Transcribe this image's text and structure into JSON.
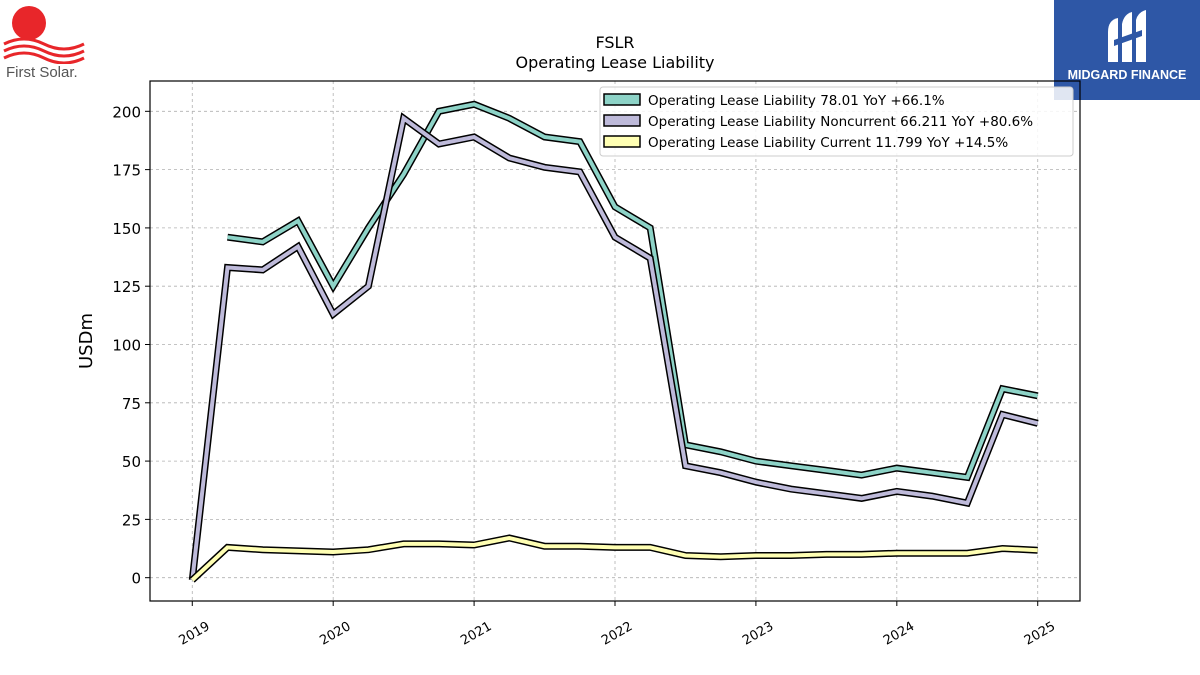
{
  "logos": {
    "left_text": "First Solar.",
    "right_text": "MIDGARD FINANCE"
  },
  "chart_data": {
    "type": "line",
    "title": "FSLR",
    "subtitle": "Operating Lease Liability",
    "xlabel": "",
    "ylabel": "USDm",
    "xlim": [
      2018.7,
      2025.3
    ],
    "ylim": [
      -10,
      213
    ],
    "yticks": [
      0,
      25,
      50,
      75,
      100,
      125,
      150,
      175,
      200
    ],
    "xticks": [
      "2019",
      "2020",
      "2021",
      "2022",
      "2023",
      "2024",
      "2025"
    ],
    "grid": true,
    "legend_position": "top-right",
    "series": [
      {
        "name": "Operating Lease Liability",
        "legend_label": "Operating Lease Liability  78.01 YoY +66.1%",
        "color": "#8dd3c7",
        "points": [
          [
            2019.25,
            146
          ],
          [
            2019.5,
            144
          ],
          [
            2019.75,
            153
          ],
          [
            2020.0,
            125
          ],
          [
            2020.25,
            150
          ],
          [
            2020.5,
            173
          ],
          [
            2020.75,
            200
          ],
          [
            2021.0,
            203
          ],
          [
            2021.25,
            197
          ],
          [
            2021.5,
            189
          ],
          [
            2021.75,
            187
          ],
          [
            2022.0,
            159
          ],
          [
            2022.25,
            150
          ],
          [
            2022.5,
            57
          ],
          [
            2022.75,
            54
          ],
          [
            2023.0,
            50
          ],
          [
            2023.25,
            48
          ],
          [
            2023.5,
            46
          ],
          [
            2023.75,
            44
          ],
          [
            2024.0,
            47
          ],
          [
            2024.25,
            45
          ],
          [
            2024.5,
            43
          ],
          [
            2024.75,
            81
          ],
          [
            2025.0,
            78.01
          ]
        ]
      },
      {
        "name": "Operating Lease Liability Noncurrent",
        "legend_label": "Operating Lease Liability Noncurrent  66.211 YoY +80.6%",
        "color": "#bebada",
        "points": [
          [
            2019.0,
            -1
          ],
          [
            2019.25,
            133
          ],
          [
            2019.5,
            132
          ],
          [
            2019.75,
            142
          ],
          [
            2020.0,
            113
          ],
          [
            2020.25,
            125
          ],
          [
            2020.5,
            197
          ],
          [
            2020.75,
            186
          ],
          [
            2021.0,
            189
          ],
          [
            2021.25,
            180
          ],
          [
            2021.5,
            176
          ],
          [
            2021.75,
            174
          ],
          [
            2022.0,
            146
          ],
          [
            2022.25,
            137
          ],
          [
            2022.5,
            48
          ],
          [
            2022.75,
            45
          ],
          [
            2023.0,
            41
          ],
          [
            2023.25,
            38
          ],
          [
            2023.5,
            36
          ],
          [
            2023.75,
            34
          ],
          [
            2024.0,
            37
          ],
          [
            2024.25,
            35
          ],
          [
            2024.5,
            32
          ],
          [
            2024.75,
            70
          ],
          [
            2025.0,
            66.211
          ]
        ]
      },
      {
        "name": "Operating Lease Liability Current",
        "legend_label": "Operating Lease Liability Current  11.799 YoY +14.5%",
        "color": "#ffffb3",
        "points": [
          [
            2019.0,
            -1
          ],
          [
            2019.25,
            13
          ],
          [
            2019.5,
            12
          ],
          [
            2019.75,
            11.5
          ],
          [
            2020.0,
            11
          ],
          [
            2020.25,
            12
          ],
          [
            2020.5,
            14.5
          ],
          [
            2020.75,
            14.5
          ],
          [
            2021.0,
            14
          ],
          [
            2021.25,
            17
          ],
          [
            2021.5,
            13.5
          ],
          [
            2021.75,
            13.5
          ],
          [
            2022.0,
            13
          ],
          [
            2022.25,
            13
          ],
          [
            2022.5,
            9.5
          ],
          [
            2022.75,
            9
          ],
          [
            2023.0,
            9.5
          ],
          [
            2023.25,
            9.5
          ],
          [
            2023.5,
            10
          ],
          [
            2023.75,
            10
          ],
          [
            2024.0,
            10.5
          ],
          [
            2024.25,
            10.5
          ],
          [
            2024.5,
            10.5
          ],
          [
            2024.75,
            12.5
          ],
          [
            2025.0,
            11.799
          ]
        ]
      }
    ]
  }
}
